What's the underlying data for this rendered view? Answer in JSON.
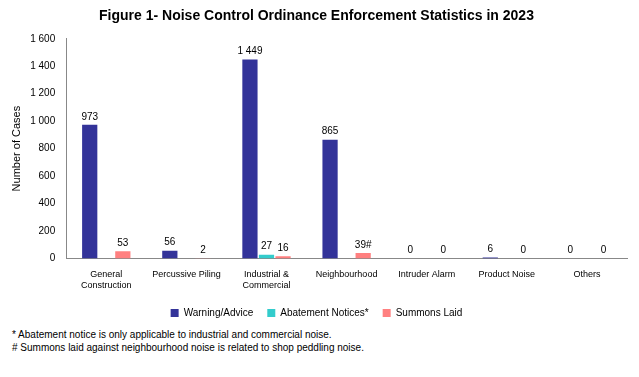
{
  "chart_data": {
    "type": "bar",
    "title": "Figure 1- Noise Control Ordinance Enforcement Statistics in 2023",
    "y_label": "Number of Cases",
    "categories": [
      "General Construction",
      "Percussive Piling",
      "Industrial & Commercial",
      "Neighbourhood",
      "Intruder Alarm",
      "Product Noise",
      "Others"
    ],
    "series": [
      {
        "name": "Warning/Advice",
        "color": "#333399",
        "values": [
          973,
          56,
          1449,
          865,
          0,
          6,
          0
        ],
        "value_labels": [
          "973",
          "56",
          "1 449",
          "865",
          "0",
          "6",
          "0"
        ]
      },
      {
        "name": "Abatement Notices*",
        "color": "#33CCCC",
        "values": [
          null,
          null,
          27,
          null,
          null,
          null,
          null
        ],
        "value_labels": [
          null,
          null,
          "27",
          null,
          null,
          null,
          null
        ]
      },
      {
        "name": "Summons Laid",
        "color": "#FF8080",
        "values": [
          53,
          2,
          16,
          39,
          0,
          0,
          0
        ],
        "value_labels": [
          "53",
          "2",
          "16",
          "39#",
          "0",
          "0",
          "0"
        ]
      }
    ],
    "ylim": [
      0,
      1600
    ],
    "yticks": [
      0,
      200,
      400,
      600,
      800,
      {
        "value": 1000,
        "label": "1 000"
      },
      {
        "value": 1200,
        "label": "1 200"
      },
      {
        "value": 1400,
        "label": "1 400"
      },
      {
        "value": 1600,
        "label": "1 600"
      }
    ],
    "grid": false,
    "legend": "bottom",
    "data_labels": true,
    "annotations": [
      "* Abatement notice is only applicable to industrial and commercial noise.",
      "# Summons laid against neighbourhood noise is related to shop peddling noise."
    ]
  }
}
